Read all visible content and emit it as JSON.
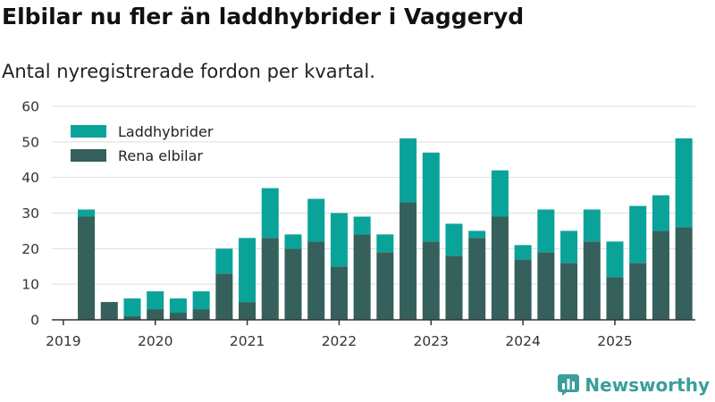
{
  "title": "Elbilar nu fler än laddhybrider i Vaggeryd",
  "subtitle": "Antal nyregistrerade fordon per kvartal.",
  "brand": {
    "name": "Newsworthy"
  },
  "colors": {
    "hybrid": "#0aa39a",
    "electric": "#35605c",
    "grid": "#dddddd",
    "axis": "#333333",
    "brand": "#3a9e9a"
  },
  "chart_data": {
    "type": "bar",
    "stacked": true,
    "title": "Elbilar nu fler än laddhybrider i Vaggeryd",
    "subtitle": "Antal nyregistrerade fordon per kvartal.",
    "xlabel": "",
    "ylabel": "",
    "ylim": [
      0,
      60
    ],
    "yticks": [
      0,
      10,
      20,
      30,
      40,
      50,
      60
    ],
    "xticks": [
      "2019",
      "2020",
      "2021",
      "2022",
      "2023",
      "2024",
      "2025"
    ],
    "categories": [
      "2019Q1",
      "2019Q2",
      "2019Q3",
      "2019Q4",
      "2020Q1",
      "2020Q2",
      "2020Q3",
      "2020Q4",
      "2021Q1",
      "2021Q2",
      "2021Q3",
      "2021Q4",
      "2022Q1",
      "2022Q2",
      "2022Q3",
      "2022Q4",
      "2023Q1",
      "2023Q2",
      "2023Q3",
      "2023Q4",
      "2024Q1",
      "2024Q2",
      "2024Q3",
      "2024Q4",
      "2025Q1",
      "2025Q2",
      "2025Q3",
      "2025Q4"
    ],
    "legend_position": "top-left",
    "series": [
      {
        "name": "Rena elbilar",
        "values": [
          0,
          29,
          5,
          1,
          3,
          2,
          3,
          13,
          5,
          23,
          20,
          22,
          15,
          24,
          19,
          33,
          22,
          18,
          23,
          29,
          17,
          19,
          16,
          22,
          12,
          16,
          25,
          26
        ]
      },
      {
        "name": "Laddhybrider",
        "values": [
          0,
          2,
          0,
          5,
          5,
          4,
          5,
          7,
          18,
          14,
          4,
          12,
          15,
          5,
          5,
          18,
          25,
          9,
          2,
          13,
          4,
          12,
          9,
          9,
          10,
          16,
          10,
          25
        ]
      }
    ]
  }
}
